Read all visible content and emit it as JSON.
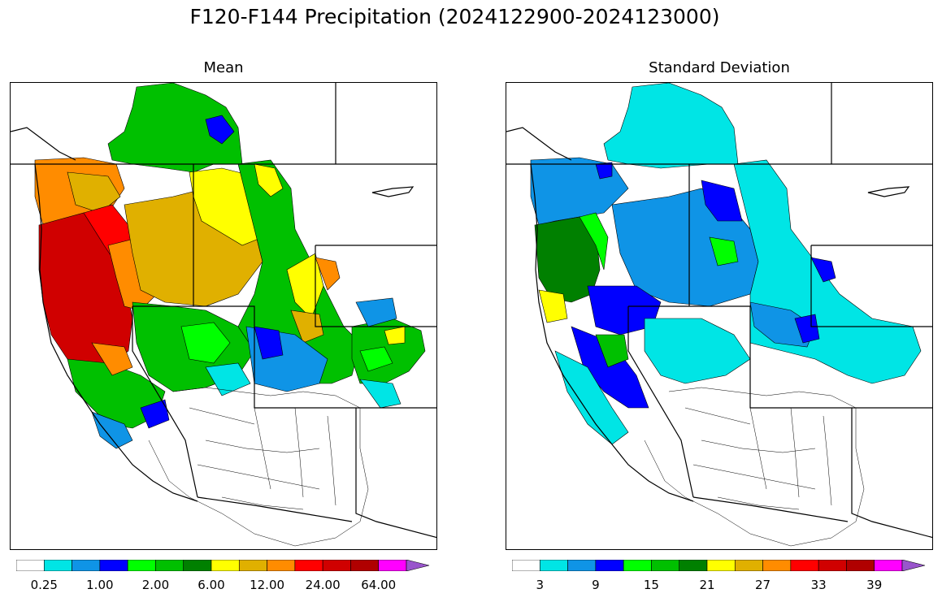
{
  "figure": {
    "title": "F120-F144 Precipitation (2024122900-2024123000)"
  },
  "panels": [
    {
      "id": "mean",
      "title": "Mean",
      "colorbar": {
        "colors": [
          "#ffffff",
          "#00e5e5",
          "#0f94e6",
          "#0000ff",
          "#00ff00",
          "#00c000",
          "#008000",
          "#ffff00",
          "#e0b000",
          "#ff8c00",
          "#ff0000",
          "#d00000",
          "#b00000",
          "#ff00ff",
          "#9955cc"
        ],
        "tick_labels": [
          "0.25",
          "1.00",
          "2.00",
          "6.00",
          "12.00",
          "24.00",
          "64.00"
        ],
        "extend": "max"
      }
    },
    {
      "id": "stddev",
      "title": "Standard Deviation",
      "colorbar": {
        "colors": [
          "#ffffff",
          "#00e5e5",
          "#0f94e6",
          "#0000ff",
          "#00ff00",
          "#00c000",
          "#008000",
          "#ffff00",
          "#e0b000",
          "#ff8c00",
          "#ff0000",
          "#d00000",
          "#b00000",
          "#ff00ff",
          "#9955cc"
        ],
        "tick_labels": [
          "3",
          "9",
          "15",
          "21",
          "27",
          "33",
          "39"
        ],
        "extend": "max"
      }
    }
  ]
}
